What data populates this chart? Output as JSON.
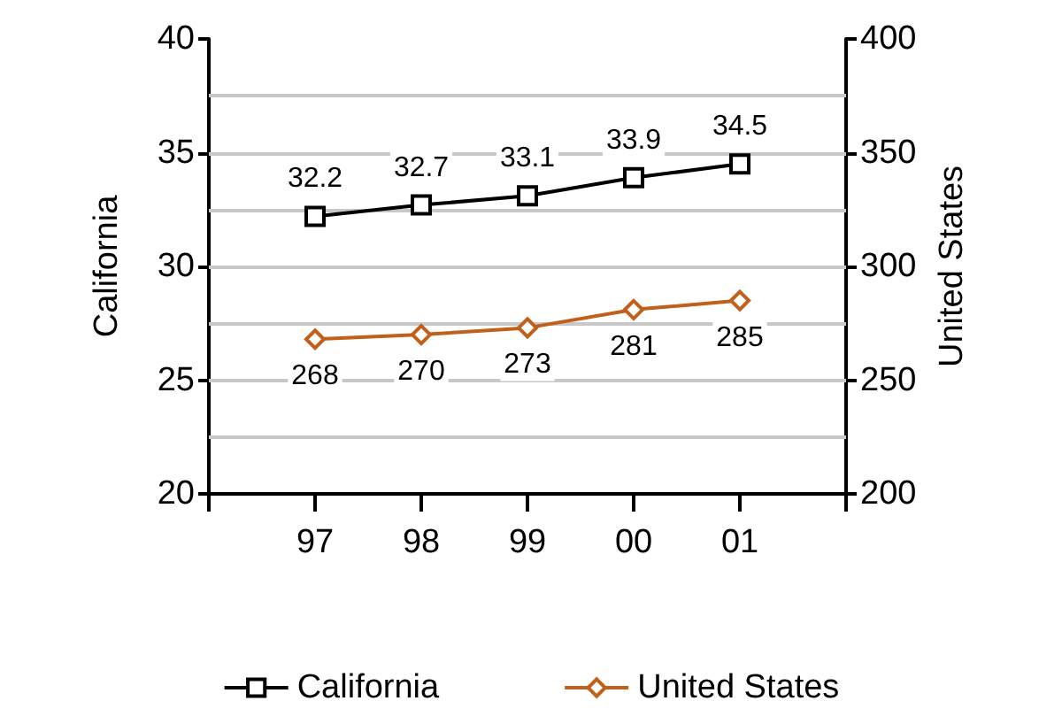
{
  "chart_data": {
    "type": "line",
    "categories": [
      "97",
      "98",
      "99",
      "00",
      "01"
    ],
    "ylabel": "California",
    "y2label": "United States",
    "ylim": [
      20,
      40
    ],
    "yticks": [
      20,
      {
        "value": 22.5,
        "label": null
      },
      25,
      {
        "value": 27.5,
        "label": null
      },
      30,
      {
        "value": 32.5,
        "label": null
      },
      35,
      {
        "value": 37.5,
        "label": null
      },
      40
    ],
    "y2lim": [
      200,
      400
    ],
    "y2ticks": [
      200,
      250,
      300,
      350,
      400
    ],
    "grid": "y",
    "legend": "bottom",
    "data_labels": true,
    "series": [
      {
        "name": "California",
        "color": "#000000",
        "marker": "square",
        "values": [
          32.2,
          32.7,
          33.1,
          33.9,
          34.5
        ]
      },
      {
        "name": "United States",
        "color": "#c0601a",
        "marker": "diamond",
        "axis": "y2",
        "values": [
          268,
          270,
          273,
          281,
          285
        ]
      }
    ]
  }
}
